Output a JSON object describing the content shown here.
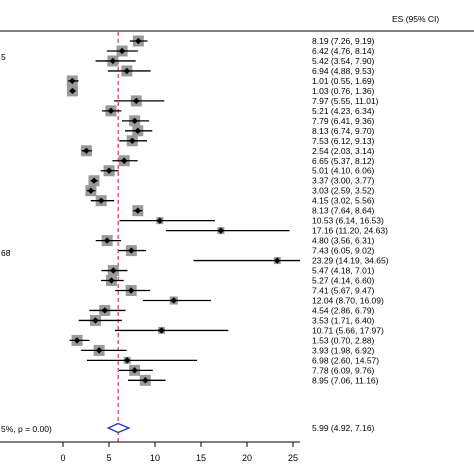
{
  "chart_data": {
    "type": "forest",
    "column_header": "ES (95% CI)",
    "left_fragments": [
      "5",
      "68"
    ],
    "xticks": [
      0,
      5,
      10,
      15,
      20,
      25
    ],
    "xlim": [
      -2,
      28
    ],
    "reference_line": 6,
    "studies": [
      {
        "es": 8.19,
        "lo": 7.26,
        "hi": 9.19,
        "label": "8.19 (7.26, 9.19)"
      },
      {
        "es": 6.42,
        "lo": 4.76,
        "hi": 8.14,
        "label": "6.42 (4.76, 8.14)"
      },
      {
        "es": 5.42,
        "lo": 3.54,
        "hi": 7.9,
        "label": "5.42 (3.54, 7.90)"
      },
      {
        "es": 6.94,
        "lo": 4.88,
        "hi": 9.53,
        "label": "6.94 (4.88, 9.53)"
      },
      {
        "es": 1.01,
        "lo": 0.55,
        "hi": 1.69,
        "label": "1.01 (0.55, 1.69)"
      },
      {
        "es": 1.03,
        "lo": 0.76,
        "hi": 1.36,
        "label": "1.03 (0.76, 1.36)"
      },
      {
        "es": 7.97,
        "lo": 5.55,
        "hi": 11.01,
        "label": "7.97 (5.55, 11.01)"
      },
      {
        "es": 5.21,
        "lo": 4.23,
        "hi": 6.34,
        "label": "5.21 (4.23, 6.34)"
      },
      {
        "es": 7.79,
        "lo": 6.41,
        "hi": 9.36,
        "label": "7.79 (6.41, 9.36)"
      },
      {
        "es": 8.13,
        "lo": 6.74,
        "hi": 9.7,
        "label": "8.13 (6.74, 9.70)"
      },
      {
        "es": 7.53,
        "lo": 6.12,
        "hi": 9.13,
        "label": "7.53 (6.12, 9.13)"
      },
      {
        "es": 2.54,
        "lo": 2.03,
        "hi": 3.14,
        "label": "2.54 (2.03, 3.14)"
      },
      {
        "es": 6.65,
        "lo": 5.37,
        "hi": 8.12,
        "label": "6.65 (5.37, 8.12)"
      },
      {
        "es": 5.01,
        "lo": 4.1,
        "hi": 6.06,
        "label": "5.01 (4.10, 6.06)"
      },
      {
        "es": 3.37,
        "lo": 3.0,
        "hi": 3.77,
        "label": "3.37 (3.00, 3.77)"
      },
      {
        "es": 3.03,
        "lo": 2.59,
        "hi": 3.52,
        "label": "3.03 (2.59, 3.52)"
      },
      {
        "es": 4.15,
        "lo": 3.02,
        "hi": 5.56,
        "label": "4.15 (3.02, 5.56)"
      },
      {
        "es": 8.13,
        "lo": 7.64,
        "hi": 8.64,
        "label": "8.13 (7.64, 8.64)"
      },
      {
        "es": 10.53,
        "lo": 6.14,
        "hi": 16.53,
        "label": "10.53 (6.14, 16.53)"
      },
      {
        "es": 17.16,
        "lo": 11.2,
        "hi": 24.63,
        "label": "17.16 (11.20, 24.63)"
      },
      {
        "es": 4.8,
        "lo": 3.56,
        "hi": 6.31,
        "label": "4.80 (3.56, 6.31)"
      },
      {
        "es": 7.43,
        "lo": 6.05,
        "hi": 9.02,
        "label": "7.43 (6.05, 9.02)"
      },
      {
        "es": 23.29,
        "lo": 14.19,
        "hi": 34.65,
        "label": "23.29 (14.19, 34.65)"
      },
      {
        "es": 5.47,
        "lo": 4.18,
        "hi": 7.01,
        "label": "5.47 (4.18, 7.01)"
      },
      {
        "es": 5.27,
        "lo": 4.14,
        "hi": 6.6,
        "label": "5.27 (4.14, 6.60)"
      },
      {
        "es": 7.41,
        "lo": 5.67,
        "hi": 9.47,
        "label": "7.41 (5.67, 9.47)"
      },
      {
        "es": 12.04,
        "lo": 8.7,
        "hi": 16.09,
        "label": "12.04 (8.70, 16.09)"
      },
      {
        "es": 4.54,
        "lo": 2.86,
        "hi": 6.79,
        "label": "4.54 (2.86, 6.79)"
      },
      {
        "es": 3.53,
        "lo": 1.71,
        "hi": 6.4,
        "label": "3.53 (1.71, 6.40)"
      },
      {
        "es": 10.71,
        "lo": 5.66,
        "hi": 17.97,
        "label": "10.71 (5.66, 17.97)"
      },
      {
        "es": 1.53,
        "lo": 0.7,
        "hi": 2.88,
        "label": "1.53 (0.70, 2.88)"
      },
      {
        "es": 3.93,
        "lo": 1.98,
        "hi": 6.92,
        "label": "3.93 (1.98, 6.92)"
      },
      {
        "es": 6.98,
        "lo": 2.6,
        "hi": 14.57,
        "label": "6.98 (2.60, 14.57)"
      },
      {
        "es": 7.78,
        "lo": 6.09,
        "hi": 9.76,
        "label": "7.78 (6.09, 9.76)"
      },
      {
        "es": 8.95,
        "lo": 7.06,
        "hi": 11.16,
        "label": "8.95 (7.06, 11.16)"
      }
    ],
    "overall": {
      "es": 5.99,
      "lo": 4.92,
      "hi": 7.16,
      "label": "5.99 (4.92, 7.16)",
      "left_label": "5%, p = 0.00)"
    },
    "colors": {
      "reference_line": "#d6336c",
      "overall_diamond": "#1f3fbf",
      "marker": "#000000"
    }
  }
}
